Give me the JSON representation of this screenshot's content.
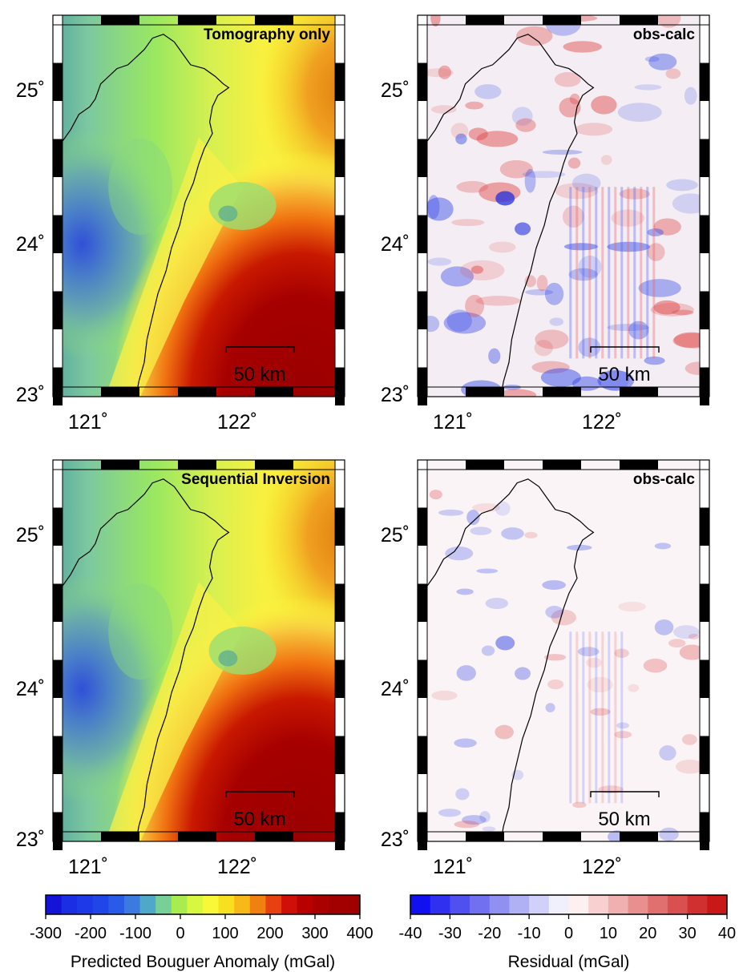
{
  "figure": {
    "panels": [
      {
        "id": "a",
        "title": "Tomography only",
        "kind": "bouguer"
      },
      {
        "id": "b",
        "title": "obs-calc",
        "kind": "residual"
      },
      {
        "id": "c",
        "title": "Sequential Inversion",
        "kind": "bouguer"
      },
      {
        "id": "d",
        "title": "obs-calc",
        "kind": "residual"
      }
    ],
    "lat_ticks": [
      "23˚",
      "24˚",
      "25˚"
    ],
    "lon_ticks": [
      "121˚",
      "122˚"
    ],
    "scale_bar": "50 km"
  },
  "colorbars": {
    "bouguer": {
      "label": "Predicted Bouguer Anomaly (mGal)",
      "ticks": [
        "-300",
        "-200",
        "-100",
        "0",
        "100",
        "200",
        "300",
        "400"
      ],
      "min": -300,
      "max": 400
    },
    "residual": {
      "label": "Residual (mGal)",
      "ticks": [
        "-40",
        "-30",
        "-20",
        "-10",
        "0",
        "10",
        "20",
        "30",
        "40"
      ],
      "min": -40,
      "max": 40
    }
  },
  "colors": {
    "bouguer_low": "#1a3ad8",
    "bouguer_mid": "#ffff40",
    "bouguer_high": "#a00000",
    "residual_neg": "#0a10e8",
    "residual_zero": "#ffffff",
    "residual_pos": "#d42020"
  }
}
